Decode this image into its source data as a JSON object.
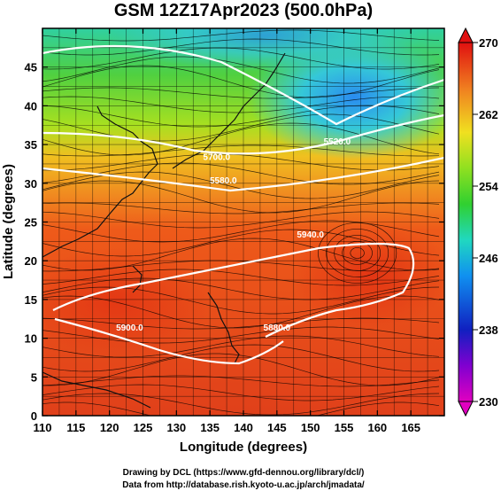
{
  "chart_data": {
    "type": "heatmap",
    "title": "GSM 12Z17Apr2023 (500.0hPa)",
    "xlabel": "Longitude (degrees)",
    "ylabel": "Latitude  (degrees)",
    "xlim": [
      110,
      170
    ],
    "ylim": [
      0,
      50
    ],
    "x_ticks": [
      110,
      115,
      120,
      125,
      130,
      135,
      140,
      145,
      150,
      155,
      160,
      165
    ],
    "y_ticks": [
      0,
      5,
      10,
      15,
      20,
      25,
      30,
      35,
      40,
      45
    ],
    "grid": true,
    "colorbar": {
      "label_ticks": [
        230,
        238,
        246,
        254,
        262,
        270
      ],
      "range": [
        230,
        270
      ],
      "placement": "right"
    },
    "contour_labels": [
      {
        "text": "5940.0",
        "lon": 150,
        "lat": 23
      },
      {
        "text": "5900.0",
        "lon": 123,
        "lat": 11
      },
      {
        "text": "5880.0",
        "lon": 145,
        "lat": 11
      },
      {
        "text": "5700.0",
        "lon": 136,
        "lat": 33
      },
      {
        "text": "5520.0",
        "lon": 154,
        "lat": 35
      },
      {
        "text": "5580.0",
        "lon": 137,
        "lat": 30
      }
    ]
  },
  "credits": {
    "line1": "Drawing by DCL (https://www.gfd-dennou.org/library/dcl/)",
    "line2": "Data from http://database.rish.kyoto-u.ac.jp/arch/jmadata/"
  },
  "colors": {
    "cold": "#2a8cf0",
    "cool": "#35d0b0",
    "mid": "#50d030",
    "warm": "#f0e020",
    "hot": "#e03010"
  }
}
